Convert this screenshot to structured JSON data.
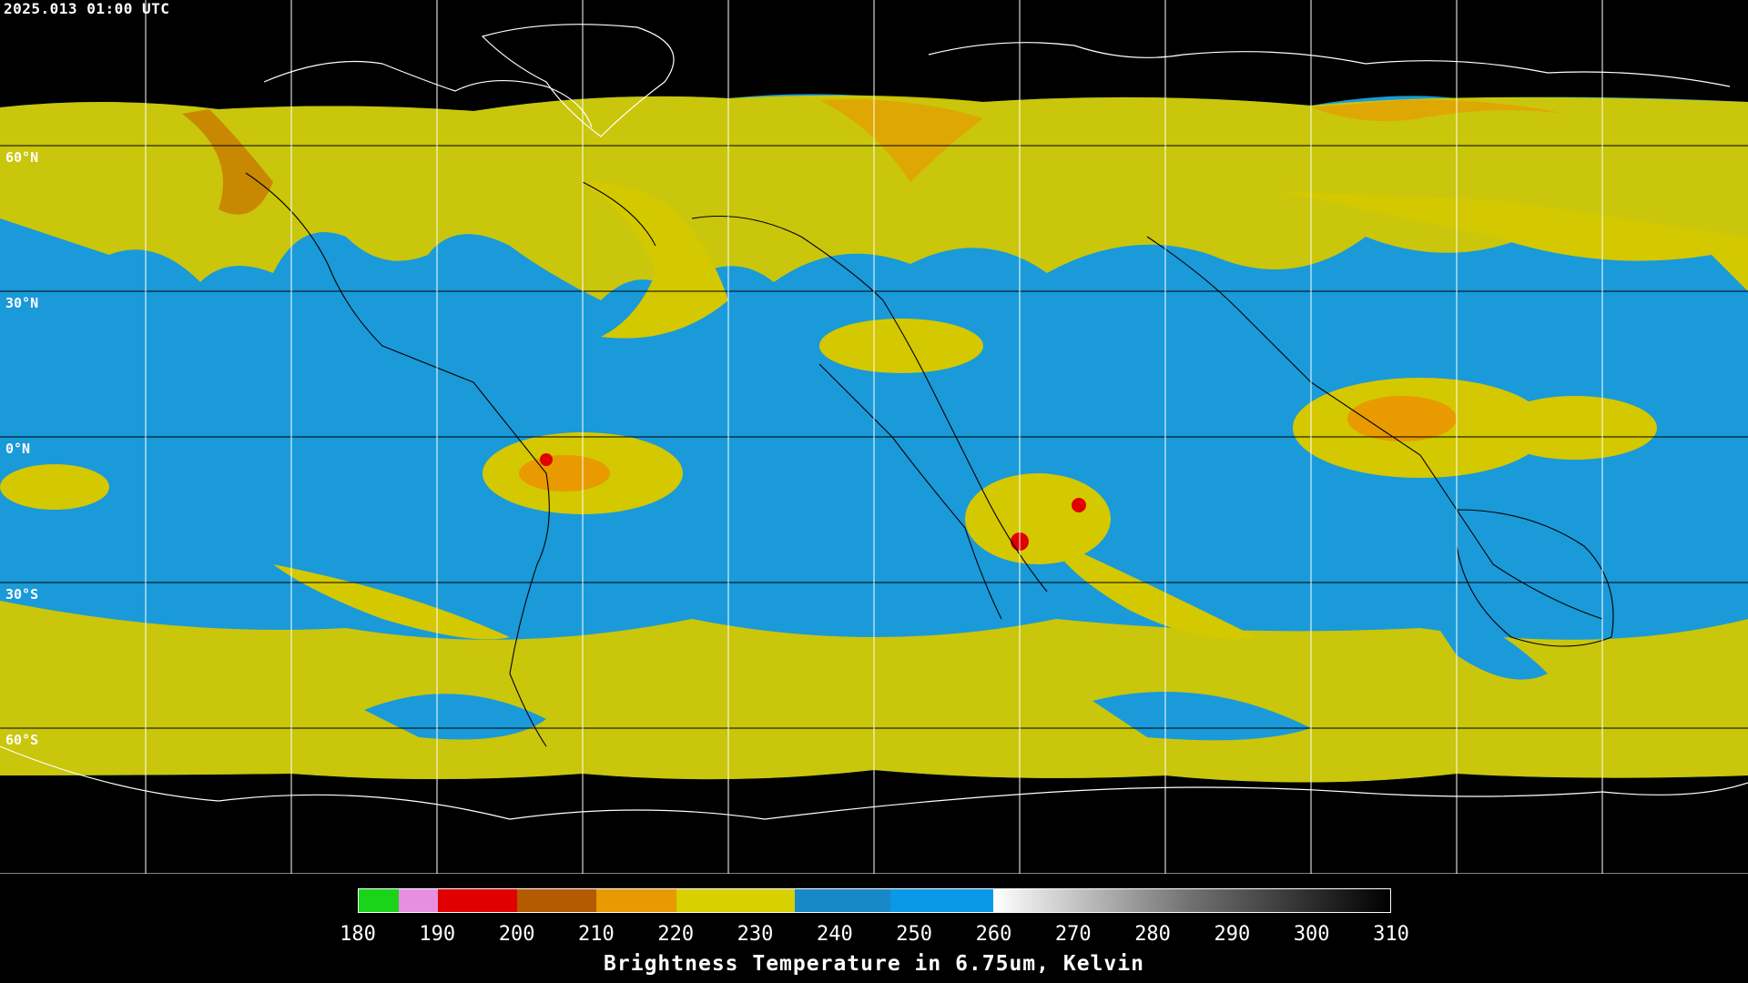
{
  "timestamp": "2025.013 01:00 UTC",
  "map": {
    "latitude_labels": [
      "60°N",
      "30°N",
      "0°N",
      "30°S",
      "60°S"
    ],
    "grid_lines": true,
    "colors": {
      "cold_cloud": "#d4c800",
      "very_cold": "#c87800",
      "moist": "#1a9ad8",
      "coast": "#ffffff",
      "background": "#000000"
    }
  },
  "legend": {
    "title": "Brightness Temperature in 6.75um, Kelvin",
    "ticks": [
      "180",
      "190",
      "200",
      "210",
      "220",
      "230",
      "240",
      "250",
      "260",
      "270",
      "280",
      "290",
      "300",
      "310"
    ],
    "range": [
      180,
      310
    ],
    "segments": [
      {
        "from": 180,
        "to": 185,
        "color": "#19d419"
      },
      {
        "from": 185,
        "to": 190,
        "color": "#e88ee0"
      },
      {
        "from": 190,
        "to": 200,
        "color": "#e00000"
      },
      {
        "from": 200,
        "to": 210,
        "color": "#b45a00"
      },
      {
        "from": 210,
        "to": 220,
        "color": "#e89a00"
      },
      {
        "from": 220,
        "to": 235,
        "color": "#d8d000"
      },
      {
        "from": 235,
        "to": 247,
        "color": "#1888c8"
      },
      {
        "from": 247,
        "to": 260,
        "color": "#0a98e8"
      },
      {
        "from": 260,
        "to": 285,
        "color": "#909090"
      },
      {
        "from": 285,
        "to": 310,
        "color": "#202020"
      }
    ]
  }
}
